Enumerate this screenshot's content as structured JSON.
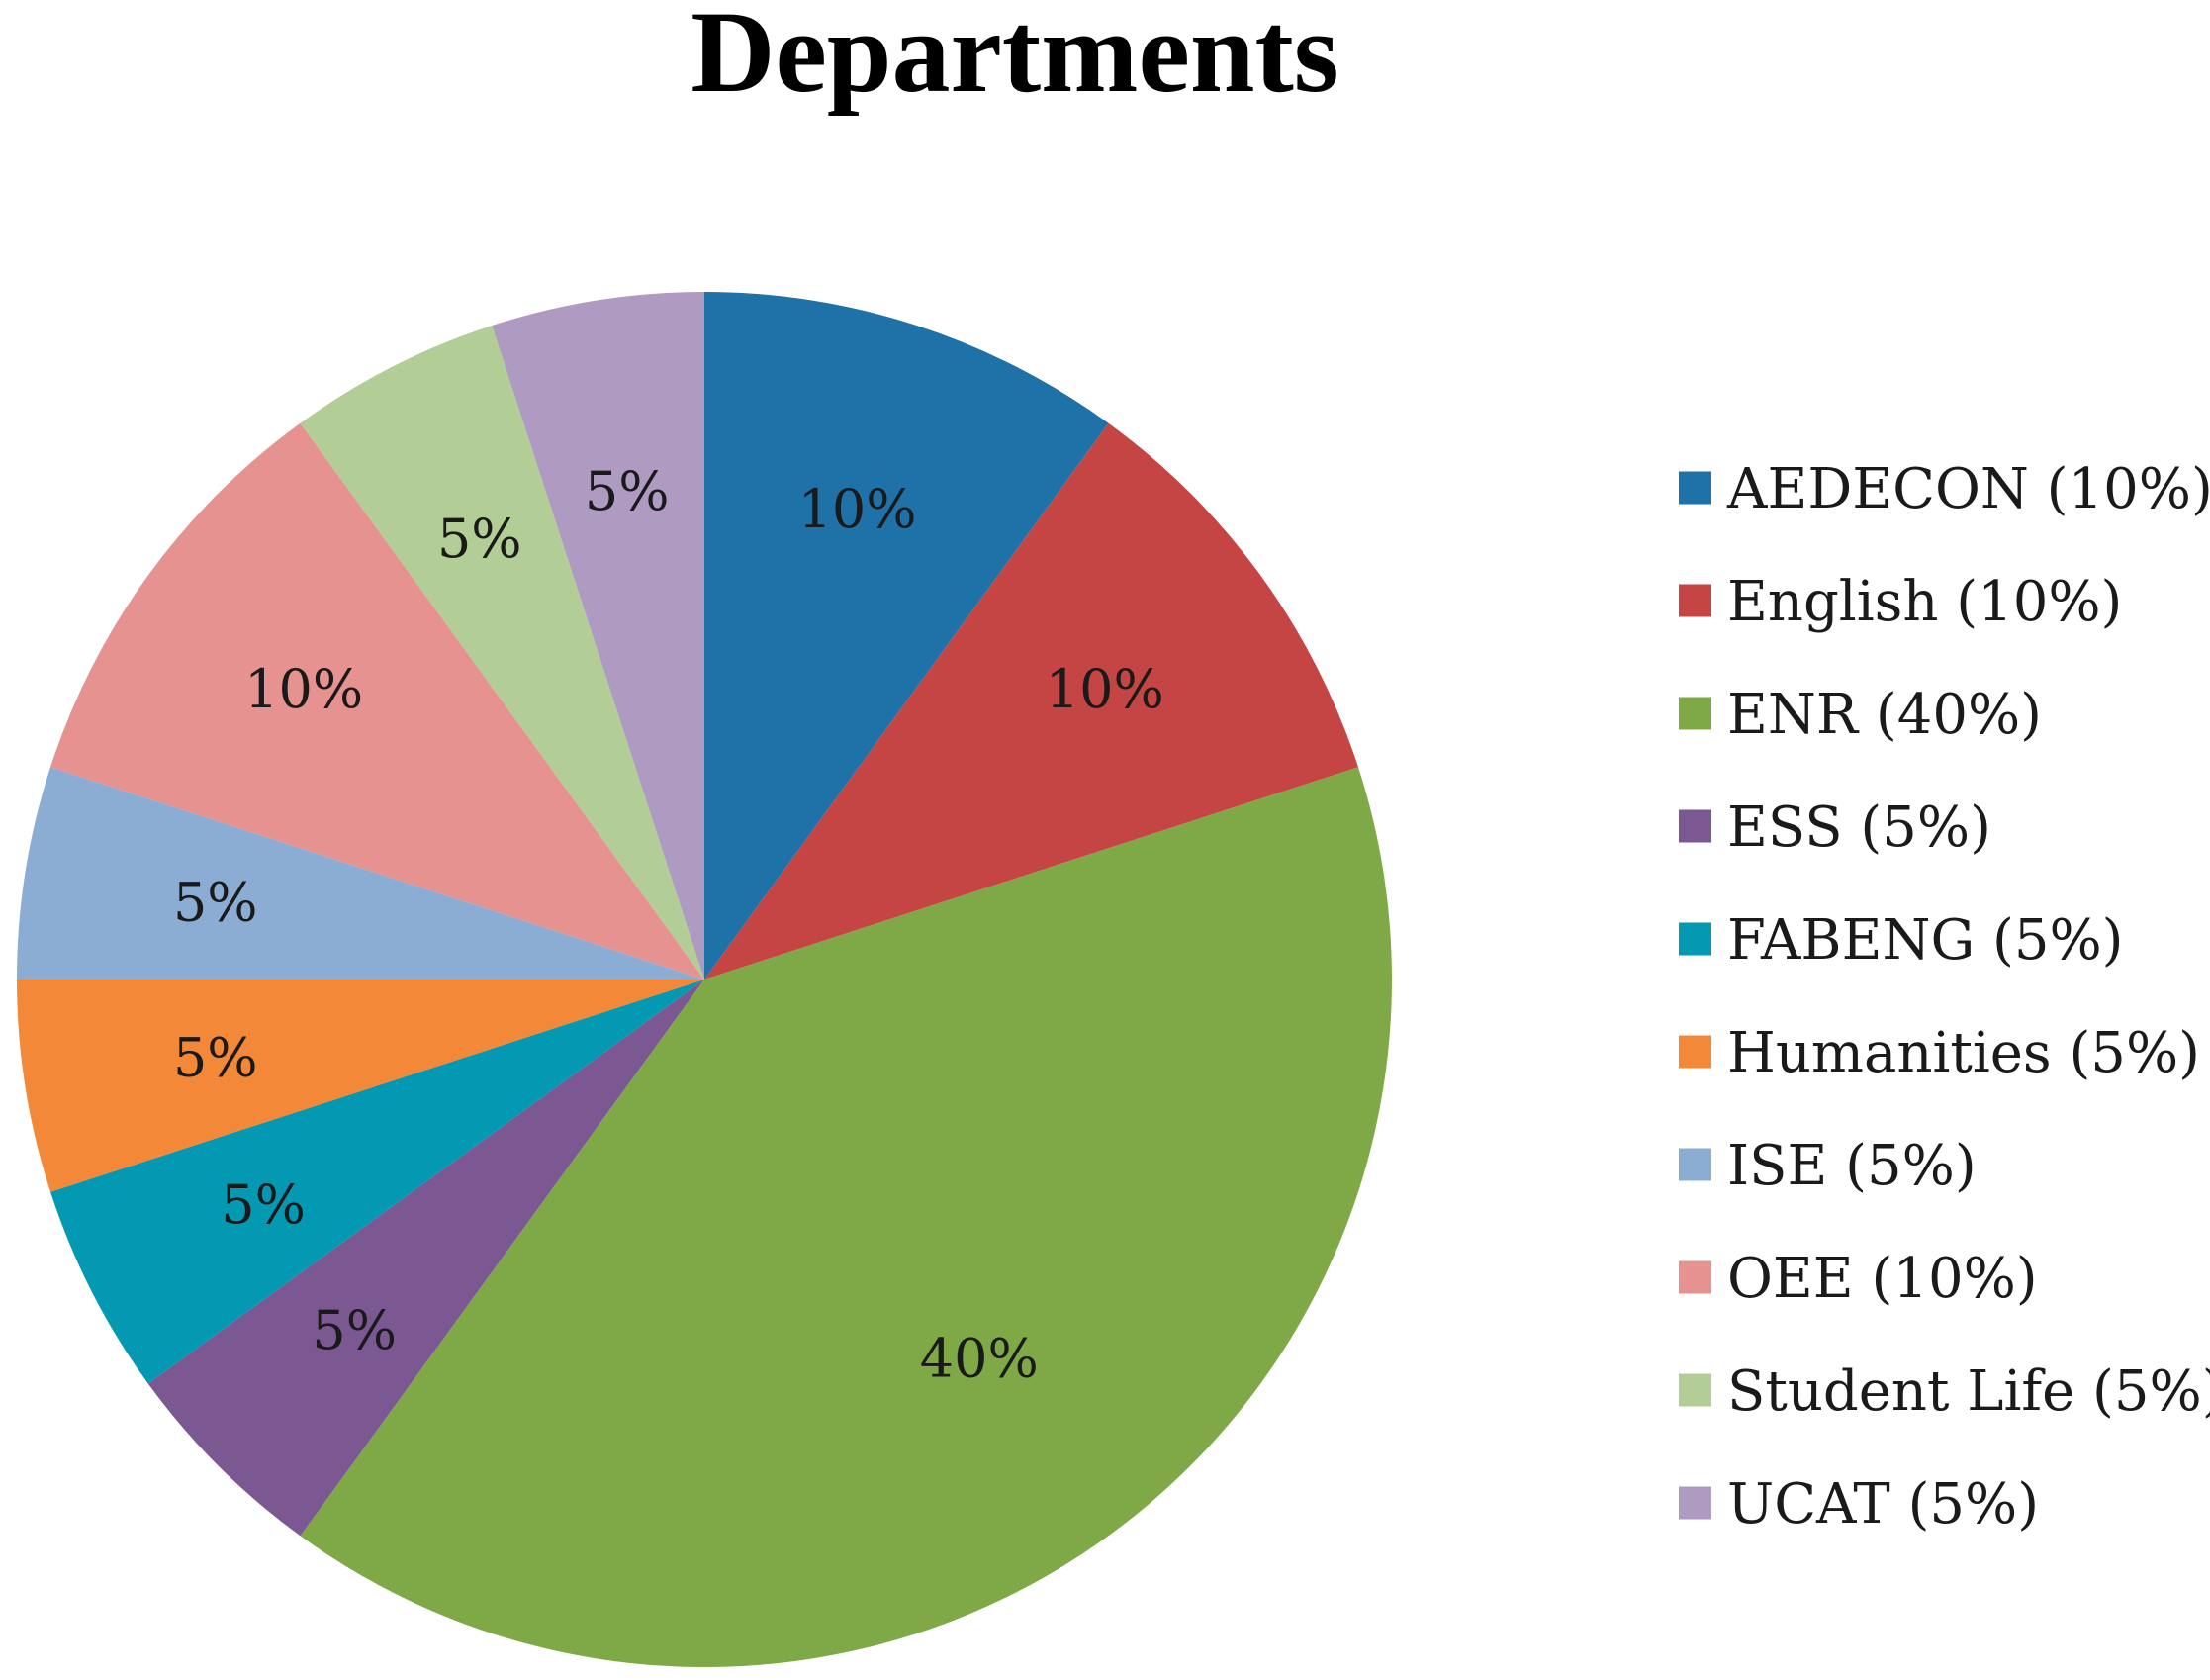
{
  "chart_data": {
    "type": "pie",
    "title": "Departments",
    "start_angle_deg": 0,
    "direction": "clockwise",
    "legend_position": "right",
    "slices": [
      {
        "name": "AEDECON",
        "value": 10,
        "label": "10%",
        "legend": "AEDECON (10%)",
        "color": "#1F72A8"
      },
      {
        "name": "English",
        "value": 10,
        "label": "10%",
        "legend": "English (10%)",
        "color": "#C44543"
      },
      {
        "name": "ENR",
        "value": 40,
        "label": "40%",
        "legend": "ENR (40%)",
        "color": "#7FA847"
      },
      {
        "name": "ESS",
        "value": 5,
        "label": "5%",
        "legend": "ESS (5%)",
        "color": "#7B5892"
      },
      {
        "name": "FABENG",
        "value": 5,
        "label": "5%",
        "legend": "FABENG (5%)",
        "color": "#0399B3"
      },
      {
        "name": "Humanities",
        "value": 5,
        "label": "5%",
        "legend": "Humanities (5%)",
        "color": "#F28838"
      },
      {
        "name": "ISE",
        "value": 5,
        "label": "5%",
        "legend": "ISE (5%)",
        "color": "#8CADD3"
      },
      {
        "name": "OEE",
        "value": 10,
        "label": "10%",
        "legend": "OEE (10%)",
        "color": "#E59291"
      },
      {
        "name": "Student Life",
        "value": 5,
        "label": "5%",
        "legend": "Student Life (5%)",
        "color": "#B2CD95"
      },
      {
        "name": "UCAT",
        "value": 5,
        "label": "5%",
        "legend": "UCAT (5%)",
        "color": "#AF9BC2"
      }
    ]
  }
}
